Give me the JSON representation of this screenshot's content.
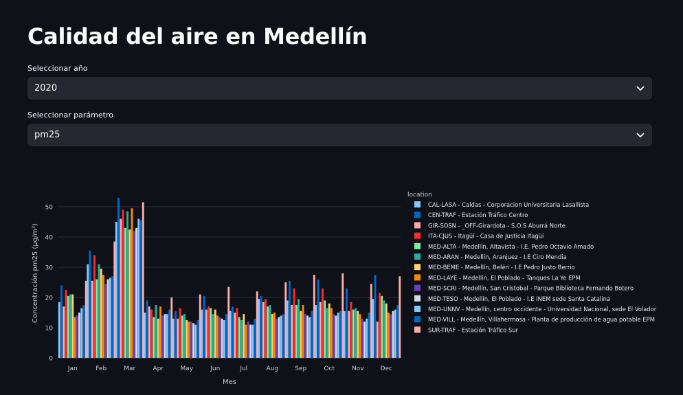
{
  "page": {
    "title": "Calidad del aire en Medellín"
  },
  "year_select": {
    "label": "Seleccionar año",
    "value": "2020"
  },
  "param_select": {
    "label": "Seleccionar parámetro",
    "value": "pm25"
  },
  "colors": {
    "background": "#0e1117",
    "select_bg": "#262730",
    "series": [
      "#83c9ff",
      "#0068c9",
      "#ffabab",
      "#ff2b2b",
      "#7defa1",
      "#29b09d",
      "#ffd16a",
      "#ff8700",
      "#6d3fc0",
      "#d5dae5",
      "#83c9ff",
      "#0068c9",
      "#ffabab"
    ]
  },
  "chart_data": {
    "type": "bar",
    "xlabel": "Mes",
    "ylabel": "Concentración  pm25  (µg/m³)",
    "ylim": [
      0,
      55
    ],
    "yticks": [
      0,
      10,
      20,
      30,
      40,
      50
    ],
    "grid": true,
    "legend_title": "location",
    "legend_position": "right",
    "categories": [
      "Jan",
      "Feb",
      "Mar",
      "Apr",
      "May",
      "Jun",
      "Jul",
      "Aug",
      "Sep",
      "Oct",
      "Nov",
      "Dec"
    ],
    "series": [
      {
        "name": "CAL-LASA - Caldas - Corporacion Universitaria Lasallista",
        "values": [
          18.5,
          31,
          45,
          15,
          13,
          16,
          15.5,
          19.5,
          19,
          17.5,
          15.5,
          19.5
        ]
      },
      {
        "name": "CEN-TRAF - Estación Tráfico Centro",
        "values": [
          24,
          35.5,
          53,
          19,
          15.5,
          20.5,
          17,
          20.5,
          25.5,
          26,
          23,
          27.5
        ]
      },
      {
        "name": "GIR-SOSN - _OFF-Girardota - S.O.S Aburrá Norte",
        "values": [
          17,
          25.5,
          46,
          17,
          13,
          16,
          15,
          18.5,
          17.5,
          18.5,
          15.5,
          12
        ]
      },
      {
        "name": "ITA-CJUS - Itagüí - Casa de Justicia Itagüí",
        "values": [
          22.5,
          34,
          49,
          16,
          16.5,
          17,
          16.5,
          19.5,
          23,
          23,
          18.5,
          21.5
        ]
      },
      {
        "name": "MED-ALTA - Medellín, Altavista - I.E. Pedro Octavio Amado",
        "values": [
          20.5,
          26,
          43,
          13.5,
          14,
          16.5,
          13.5,
          17,
          17.5,
          19,
          16,
          20.5
        ]
      },
      {
        "name": "MED-ARAN - Medellín, Aranjuez - I.E Ciro Mendia",
        "values": [
          21,
          31,
          48.5,
          17.5,
          14.5,
          14.5,
          12.5,
          17.5,
          19.5,
          16.5,
          16.5,
          19
        ]
      },
      {
        "name": "MED-BEME - Medellín, Belén - I.E Pedro Justo Berrio",
        "values": [
          21,
          29.5,
          42.5,
          13,
          12.5,
          16,
          14.5,
          14.5,
          15.5,
          18,
          15.5,
          18
        ]
      },
      {
        "name": "MED-LAYE - Medellín, El Poblado - Tanques La Ye EPM",
        "values": [
          13.5,
          27.5,
          49.5,
          17,
          12,
          14,
          11,
          15,
          17.5,
          16.5,
          14.5,
          15
        ]
      },
      {
        "name": "MED-SCRI - Medellín, San Cristobal - Parque Biblioteca Fernando Botero",
        "values": [
          14,
          24.5,
          42,
          14,
          12,
          13.5,
          12,
          13,
          14.5,
          14.5,
          13,
          14.5
        ]
      },
      {
        "name": "MED-TESO - Medellín, El Poblado - I.E INEM sede Santa Catalina",
        "values": [
          15,
          26,
          43,
          14.5,
          11.5,
          13,
          11,
          13.5,
          14,
          14,
          12,
          15.5
        ]
      },
      {
        "name": "MED-UNNV - Medellín,  centro occidente - Universidad Nacional, sede El Volador",
        "values": [
          16.5,
          26.5,
          46,
          14.5,
          11,
          12.5,
          11,
          14,
          13.5,
          15,
          13,
          16
        ]
      },
      {
        "name": "MED-VILL - Medellín, Villahermosa - Planta de producción de agua potable EPM",
        "values": [
          17.5,
          27,
          45.5,
          16,
          12.5,
          14.5,
          13,
          14.5,
          15.5,
          15.5,
          15,
          17.5
        ]
      },
      {
        "name": "SUR-TRAF - Estación Tráfico Sur",
        "values": [
          25.5,
          38.5,
          51.5,
          20,
          21,
          23.5,
          22,
          25,
          27.5,
          28,
          24.5,
          27
        ]
      }
    ]
  }
}
